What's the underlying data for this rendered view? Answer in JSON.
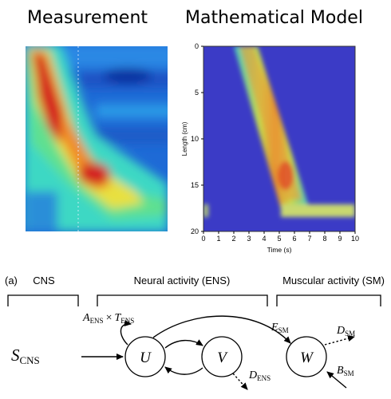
{
  "titles": {
    "measurement": "Measurement",
    "model": "Mathematical Model"
  },
  "model_plot": {
    "ylabel": "Length (cm)",
    "xlabel": "Time (s)",
    "yticks": [
      "0",
      "5",
      "10",
      "15",
      "20"
    ],
    "xticks": [
      "0",
      "1",
      "2",
      "3",
      "4",
      "5",
      "6",
      "7",
      "8",
      "9",
      "10"
    ]
  },
  "diagram": {
    "panel_label": "(a)",
    "brackets": {
      "cns": "CNS",
      "ens": "Neural activity (ENS)",
      "sm": "Muscular activity (SM)"
    },
    "nodes": {
      "u": "U",
      "v": "V",
      "w": "W"
    },
    "labels": {
      "s_cns_main": "S",
      "s_cns_sub": "CNS",
      "a_main": "A",
      "a_sub": "ENS",
      "times": "×",
      "t_main": "T",
      "t_sub": "ENS",
      "e_main": "E",
      "e_sub": "SM",
      "d_sm_main": "D",
      "d_sm_sub": "SM",
      "b_main": "B",
      "b_sub": "SM",
      "d_ens_main": "D",
      "d_ens_sub": "ENS"
    }
  },
  "colors": {
    "background_blue": "#3a3ac0",
    "heat_red": "#d01818",
    "heat_yellow": "#f2e23c",
    "heat_cyan": "#2ee0d0"
  }
}
